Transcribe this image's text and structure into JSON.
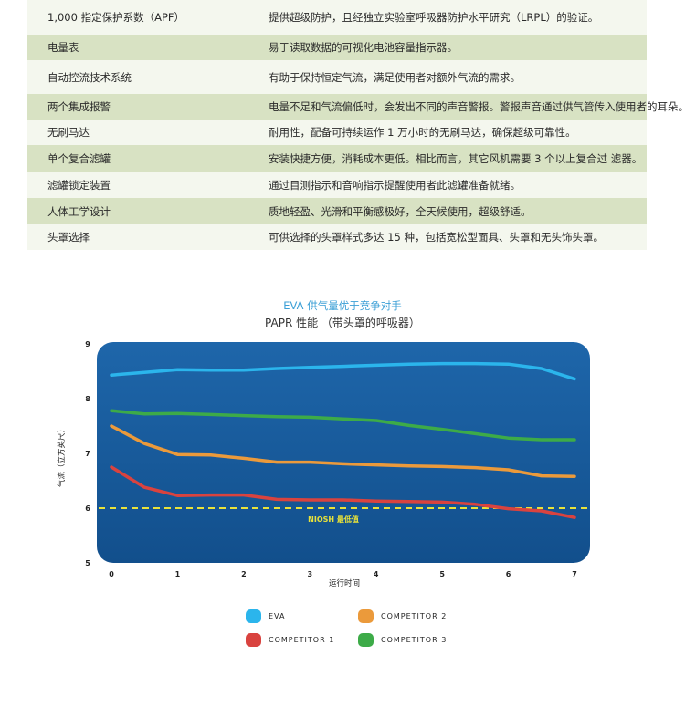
{
  "table": {
    "rows": [
      {
        "feature": "1,000 指定保护系数（APF）",
        "desc": "提供超级防护，且经独立实验室呼吸器防护水平研究（LRPL）的验证。",
        "shade": "white"
      },
      {
        "feature": "电量表",
        "desc": "易于读取数据的可视化电池容量指示器。",
        "shade": "green"
      },
      {
        "feature": "自动控流技术系统",
        "desc": "有助于保持恒定气流，满足使用者对额外气流的需求。",
        "shade": "white"
      },
      {
        "feature": "两个集成报警",
        "desc": "电量不足和气流偏低时，会发出不同的声音警报。警报声音通过供气管传入使用者的耳朵。",
        "shade": "green"
      },
      {
        "feature": "无刷马达",
        "desc": "耐用性，配备可持续运作 1 万小时的无刷马达，确保超级可靠性。",
        "shade": "white"
      },
      {
        "feature": "单个复合滤罐",
        "desc": "安装快捷方便，消耗成本更低。相比而言，其它风机需要 3 个以上复合过 滤器。",
        "shade": "green"
      },
      {
        "feature": "滤罐锁定装置",
        "desc": "通过目测指示和音响指示提醒使用者此滤罐准备就绪。",
        "shade": "white"
      },
      {
        "feature": "人体工学设计",
        "desc": "质地轻盈、光滑和平衡感极好，全天候使用，超级舒适。",
        "shade": "green"
      },
      {
        "feature": "头罩选择",
        "desc": "可供选择的头罩样式多达 15 种，包括宽松型面具、头罩和无头饰头罩。",
        "shade": "white"
      }
    ]
  },
  "chart_data": {
    "type": "line",
    "title": "EVA 供气量优于竞争对手",
    "subtitle": "PAPR 性能 （带头罩的呼吸器）",
    "xlabel": "运行时间",
    "ylabel": "气流（立方英尺）",
    "xlim": [
      0,
      7
    ],
    "ylim": [
      5,
      9
    ],
    "xticks": [
      "0",
      "1",
      "2",
      "3",
      "4",
      "5",
      "6",
      "7"
    ],
    "yticks": [
      "5",
      "6",
      "7",
      "8",
      "9"
    ],
    "reference_line": {
      "value": 6,
      "label": "NIOSH 最低值",
      "color": "#e8e23a"
    },
    "x": [
      0,
      0.5,
      1,
      1.5,
      2,
      2.5,
      3,
      3.5,
      4,
      4.5,
      5,
      5.5,
      6,
      6.5,
      7
    ],
    "series": [
      {
        "name": "EVA",
        "color": "#2bb5ec",
        "values": [
          8.43,
          8.48,
          8.53,
          8.52,
          8.52,
          8.55,
          8.57,
          8.59,
          8.61,
          8.63,
          8.64,
          8.64,
          8.63,
          8.55,
          8.36
        ]
      },
      {
        "name": "COMPETITOR 1",
        "color": "#d9433f",
        "values": [
          6.75,
          6.38,
          6.23,
          6.24,
          6.24,
          6.16,
          6.15,
          6.15,
          6.13,
          6.12,
          6.11,
          6.07,
          5.99,
          5.95,
          5.83
        ]
      },
      {
        "name": "COMPETITOR 2",
        "color": "#eb9a3b",
        "values": [
          7.5,
          7.18,
          6.98,
          6.97,
          6.91,
          6.84,
          6.84,
          6.81,
          6.79,
          6.77,
          6.76,
          6.74,
          6.7,
          6.59,
          6.58
        ]
      },
      {
        "name": "COMPETITOR 3",
        "color": "#3dab48",
        "values": [
          7.78,
          7.72,
          7.73,
          7.71,
          7.69,
          7.67,
          7.66,
          7.63,
          7.6,
          7.51,
          7.44,
          7.36,
          7.28,
          7.25,
          7.25
        ]
      }
    ],
    "legend": {
      "placement": "bottom",
      "columns": 2
    },
    "grid": false,
    "background": "#1a5fa0"
  }
}
